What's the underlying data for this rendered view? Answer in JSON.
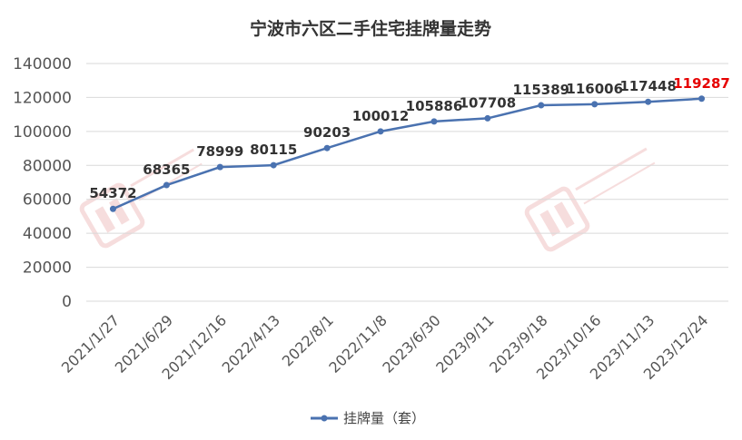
{
  "chart_data": {
    "type": "line",
    "title": "宁波市六区二手住宅挂牌量走势",
    "categories": [
      "2021/1/27",
      "2021/6/29",
      "2021/12/16",
      "2022/4/13",
      "2022/8/1",
      "2022/11/8",
      "2023/6/30",
      "2023/9/11",
      "2023/9/18",
      "2023/10/16",
      "2023/11/13",
      "2023/12/24"
    ],
    "series": [
      {
        "name": "挂牌量（套）",
        "values": [
          54372,
          68365,
          78999,
          80115,
          90203,
          100012,
          105886,
          107708,
          115389,
          116006,
          117448,
          119287
        ],
        "data_labels": [
          "54372",
          "68365",
          "78999",
          "80115",
          "90203",
          "100012",
          "105886",
          "107708",
          "115389",
          "116006",
          "117448",
          "119287"
        ]
      }
    ],
    "ylim": [
      0,
      140000
    ],
    "yticks": [
      0,
      20000,
      40000,
      60000,
      80000,
      100000,
      120000,
      140000
    ],
    "ytick_labels": [
      "0",
      "20000",
      "40000",
      "60000",
      "80000",
      "100000",
      "120000",
      "140000"
    ],
    "grid": true,
    "legend": "bottom",
    "highlight_last_label": true
  },
  "colors": {
    "series": "#4a72b0",
    "highlight_label": "#e60000",
    "grid": "#d9d9d9",
    "watermark": "#e8a0a0"
  },
  "watermark": {
    "icon": "ningbo-new-property-logo"
  }
}
